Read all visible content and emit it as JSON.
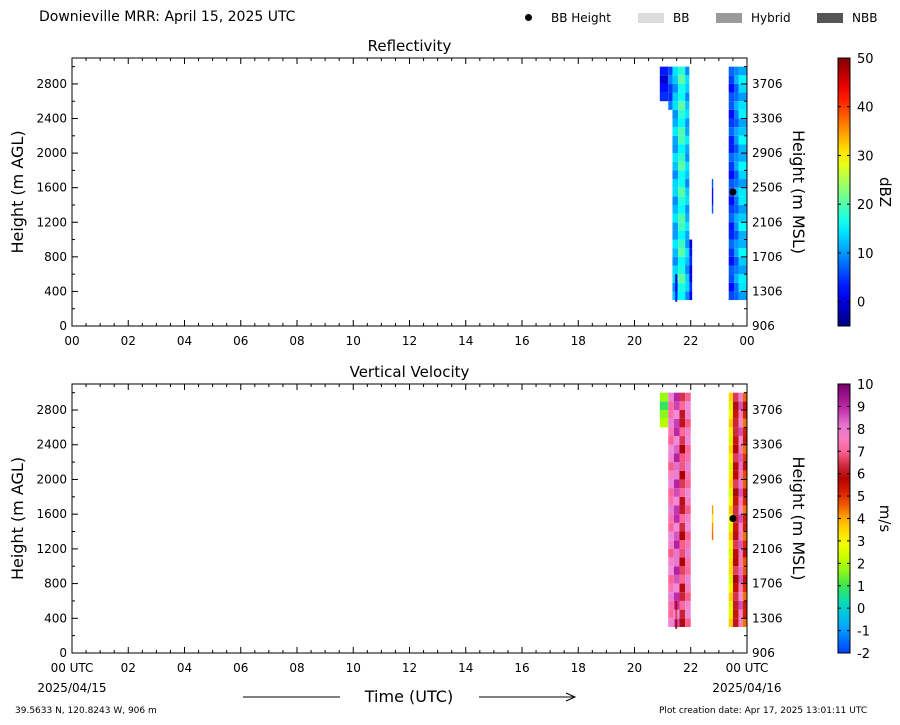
{
  "title": "Downieville MRR:  April 15, 2025 UTC",
  "legend": [
    {
      "label": "BB Height",
      "kind": "dot",
      "color": "#000000"
    },
    {
      "label": "BB",
      "kind": "swatch",
      "color": "#dcdcdc"
    },
    {
      "label": "Hybrid",
      "kind": "swatch",
      "color": "#9a9a9a"
    },
    {
      "label": "NBB",
      "kind": "swatch",
      "color": "#555555"
    }
  ],
  "footer": {
    "location": "39.5633 N, 120.8243 W, 906 m",
    "creation": "Plot creation date: Apr 17, 2025 13:01:11 UTC"
  },
  "chart_data": [
    {
      "type": "heatmap",
      "title": "Reflectivity",
      "xlabel": "",
      "ylabel": "Height (m AGL)",
      "ylabel_right": "Height (m MSL)",
      "x_unit": "hours UTC",
      "xlim": [
        0,
        24
      ],
      "ylim": [
        0,
        3100
      ],
      "x_ticks": [
        "00",
        "02",
        "04",
        "06",
        "08",
        "10",
        "12",
        "14",
        "16",
        "18",
        "20",
        "22",
        "00"
      ],
      "x_tick_values": [
        0,
        2,
        4,
        6,
        8,
        10,
        12,
        14,
        16,
        18,
        20,
        22,
        24
      ],
      "y_ticks": [
        0,
        400,
        800,
        1200,
        1600,
        2000,
        2400,
        2800
      ],
      "y_ticks_right": [
        "906",
        "1306",
        "1706",
        "2106",
        "2506",
        "2906",
        "3306",
        "3706"
      ],
      "colorbar": {
        "label": "dBZ",
        "min": -5,
        "max": 50,
        "ticks": [
          0,
          10,
          20,
          30,
          40,
          50
        ],
        "colormap": "jet"
      },
      "grid": false,
      "bb_height": [
        {
          "x": 23.5,
          "y": 1550
        }
      ],
      "echo_segments": [
        {
          "x0": 20.9,
          "x1": 21.2,
          "y0": 2600,
          "y1": 3000,
          "value": 2
        },
        {
          "x0": 21.2,
          "x1": 21.35,
          "y0": 2500,
          "y1": 3000,
          "value": 6
        },
        {
          "x0": 21.35,
          "x1": 21.55,
          "y0": 300,
          "y1": 3000,
          "value": 12
        },
        {
          "x0": 21.55,
          "x1": 21.8,
          "y0": 300,
          "y1": 3000,
          "value": 18
        },
        {
          "x0": 21.8,
          "x1": 21.95,
          "y0": 300,
          "y1": 3000,
          "value": 12
        },
        {
          "x0": 21.95,
          "x1": 22.05,
          "y0": 300,
          "y1": 1000,
          "value": 2
        },
        {
          "x0": 21.45,
          "x1": 21.52,
          "y0": 280,
          "y1": 600,
          "value": 1
        },
        {
          "x0": 22.75,
          "x1": 22.8,
          "y0": 1300,
          "y1": 1700,
          "value": 4
        },
        {
          "x0": 23.35,
          "x1": 23.55,
          "y0": 300,
          "y1": 3000,
          "value": 5
        },
        {
          "x0": 23.55,
          "x1": 23.7,
          "y0": 300,
          "y1": 3000,
          "value": 9
        },
        {
          "x0": 23.7,
          "x1": 24.0,
          "y0": 300,
          "y1": 3000,
          "value": 13
        }
      ]
    },
    {
      "type": "heatmap",
      "title": "Vertical Velocity",
      "xlabel": "Time (UTC)",
      "ylabel": "Height (m AGL)",
      "ylabel_right": "Height (m MSL)",
      "x_unit": "hours UTC",
      "xlim": [
        0,
        24
      ],
      "ylim": [
        0,
        3100
      ],
      "x_ticks": [
        "00 UTC",
        "02",
        "04",
        "06",
        "08",
        "10",
        "12",
        "14",
        "16",
        "18",
        "20",
        "22",
        "00 UTC"
      ],
      "x_tick_values": [
        0,
        2,
        4,
        6,
        8,
        10,
        12,
        14,
        16,
        18,
        20,
        22,
        24
      ],
      "x_date_labels": [
        "2025/04/15",
        "2025/04/16"
      ],
      "y_ticks": [
        0,
        400,
        800,
        1200,
        1600,
        2000,
        2400,
        2800
      ],
      "y_ticks_right": [
        "906",
        "1306",
        "1706",
        "2106",
        "2506",
        "2906",
        "3306",
        "3706"
      ],
      "colorbar": {
        "label": "m/s",
        "min": -2,
        "max": 10,
        "ticks": [
          -2,
          -1,
          0,
          1,
          2,
          3,
          4,
          5,
          6,
          7,
          8,
          9,
          10
        ],
        "colormap": "velocity"
      },
      "grid": false,
      "bb_height": [
        {
          "x": 23.5,
          "y": 1550
        }
      ],
      "echo_segments": [
        {
          "x0": 20.9,
          "x1": 21.2,
          "y0": 2600,
          "y1": 3000,
          "value": 1.5
        },
        {
          "x0": 21.2,
          "x1": 21.4,
          "y0": 300,
          "y1": 3000,
          "value": 7.5
        },
        {
          "x0": 21.4,
          "x1": 21.6,
          "y0": 300,
          "y1": 3000,
          "value": 8.5
        },
        {
          "x0": 21.6,
          "x1": 21.8,
          "y0": 300,
          "y1": 3000,
          "value": 6.5
        },
        {
          "x0": 21.8,
          "x1": 22.0,
          "y0": 300,
          "y1": 3000,
          "value": 7.5
        },
        {
          "x0": 21.45,
          "x1": 21.52,
          "y0": 280,
          "y1": 600,
          "value": 6
        },
        {
          "x0": 22.75,
          "x1": 22.8,
          "y0": 1300,
          "y1": 1700,
          "value": 4
        },
        {
          "x0": 23.35,
          "x1": 23.5,
          "y0": 300,
          "y1": 3000,
          "value": 3
        },
        {
          "x0": 23.5,
          "x1": 23.7,
          "y0": 300,
          "y1": 3000,
          "value": 6
        },
        {
          "x0": 23.7,
          "x1": 23.85,
          "y0": 300,
          "y1": 3000,
          "value": 8
        },
        {
          "x0": 23.85,
          "x1": 24.0,
          "y0": 300,
          "y1": 3000,
          "value": 5
        }
      ]
    }
  ]
}
